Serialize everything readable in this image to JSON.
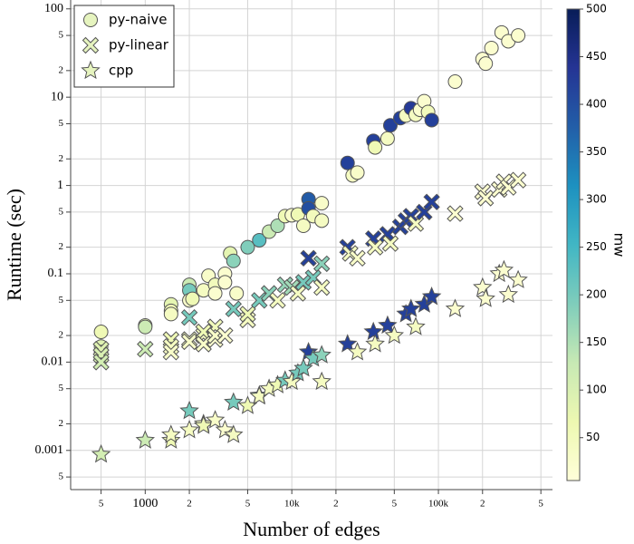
{
  "chart_data": {
    "type": "scatter",
    "x_label": "Number of edges",
    "y_label": "Runtime (sec)",
    "log_x": true,
    "log_y": true,
    "grid": true,
    "xlim": [
      310,
      600000
    ],
    "ylim": [
      0.00036,
      126
    ],
    "xticks": [
      {
        "value": 500,
        "label": "5"
      },
      1000,
      {
        "value": 2000,
        "label": "2"
      },
      {
        "value": 5000,
        "label": "5"
      },
      {
        "value": 10000,
        "label": "10k"
      },
      {
        "value": 20000,
        "label": "2"
      },
      {
        "value": 50000,
        "label": "5"
      },
      {
        "value": 100000,
        "label": "100k"
      },
      {
        "value": 200000,
        "label": "2"
      },
      {
        "value": 500000,
        "label": "5"
      }
    ],
    "yticks": [
      {
        "value": 0.0005,
        "label": "5"
      },
      0.001,
      {
        "value": 0.002,
        "label": "2"
      },
      {
        "value": 0.005,
        "label": "5"
      },
      0.01,
      {
        "value": 0.02,
        "label": "2"
      },
      {
        "value": 0.05,
        "label": "5"
      },
      0.1,
      {
        "value": 0.2,
        "label": "2"
      },
      {
        "value": 0.5,
        "label": "5"
      },
      1,
      {
        "value": 2,
        "label": "2"
      },
      {
        "value": 5,
        "label": "5"
      },
      10,
      {
        "value": 20,
        "label": "2"
      },
      {
        "value": 50,
        "label": "5"
      },
      100
    ],
    "legend_position": "upper left",
    "legend_color": "#e6f4bf",
    "colorbar": {
      "label": "mw",
      "colormap": "YlGnBu",
      "lim": [
        5,
        500
      ],
      "ticks": [
        50,
        100,
        150,
        200,
        250,
        300,
        350,
        400,
        450,
        500
      ]
    },
    "series": [
      {
        "name": "py-naive",
        "marker": "circle",
        "x": [
          500,
          500,
          500,
          500,
          1000,
          1000,
          1500,
          1500,
          1500,
          2000,
          2000,
          2000,
          2100,
          2500,
          2700,
          3000,
          3000,
          3500,
          3500,
          3800,
          4000,
          4200,
          5000,
          6000,
          7000,
          8000,
          9000,
          10000,
          11000,
          12000,
          13000,
          13000,
          14000,
          16000,
          16000,
          24000,
          26000,
          28000,
          36000,
          37000,
          45000,
          47000,
          55000,
          60000,
          65000,
          70000,
          75000,
          80000,
          85000,
          90000,
          130000,
          200000,
          210000,
          230000,
          270000,
          300000,
          350000
        ],
        "values": [
          0.022,
          0.015,
          0.013,
          0.011,
          0.026,
          0.025,
          0.045,
          0.038,
          0.035,
          0.075,
          0.065,
          0.05,
          0.052,
          0.065,
          0.095,
          0.075,
          0.06,
          0.1,
          0.08,
          0.17,
          0.14,
          0.06,
          0.2,
          0.24,
          0.3,
          0.35,
          0.45,
          0.46,
          0.47,
          0.35,
          0.7,
          0.55,
          0.45,
          0.4,
          0.63,
          1.8,
          1.3,
          1.4,
          3.2,
          2.7,
          3.4,
          4.8,
          5.8,
          6.2,
          7.5,
          6.3,
          7.2,
          9,
          6.8,
          5.5,
          15,
          27,
          24,
          36,
          54,
          43,
          50
        ],
        "mw": [
          60,
          90,
          100,
          110,
          80,
          120,
          80,
          60,
          40,
          120,
          200,
          30,
          60,
          40,
          30,
          50,
          20,
          20,
          20,
          80,
          180,
          30,
          190,
          230,
          120,
          150,
          60,
          30,
          60,
          40,
          380,
          400,
          50,
          40,
          30,
          420,
          40,
          30,
          420,
          60,
          40,
          420,
          420,
          40,
          430,
          40,
          20,
          20,
          50,
          420,
          20,
          20,
          20,
          20,
          20,
          20,
          20
        ]
      },
      {
        "name": "py-linear",
        "marker": "x",
        "x": [
          500,
          500,
          500,
          1000,
          1500,
          1500,
          1500,
          2000,
          2000,
          2000,
          2500,
          2500,
          2500,
          3000,
          3000,
          3000,
          3500,
          4000,
          5000,
          5000,
          6000,
          7000,
          8000,
          9000,
          10000,
          11000,
          12000,
          13000,
          14000,
          16000,
          16000,
          24000,
          25000,
          28000,
          36000,
          37000,
          45000,
          47000,
          55000,
          60000,
          65000,
          70000,
          80000,
          90000,
          130000,
          200000,
          210000,
          260000,
          280000,
          300000,
          350000
        ],
        "values": [
          0.014,
          0.012,
          0.01,
          0.014,
          0.018,
          0.015,
          0.013,
          0.032,
          0.018,
          0.017,
          0.02,
          0.022,
          0.016,
          0.025,
          0.018,
          0.02,
          0.02,
          0.04,
          0.03,
          0.035,
          0.05,
          0.06,
          0.05,
          0.075,
          0.07,
          0.06,
          0.08,
          0.15,
          0.09,
          0.13,
          0.07,
          0.2,
          0.17,
          0.15,
          0.25,
          0.2,
          0.28,
          0.22,
          0.34,
          0.4,
          0.45,
          0.37,
          0.5,
          0.65,
          0.48,
          0.85,
          0.72,
          0.9,
          1.1,
          0.95,
          1.15
        ],
        "mw": [
          90,
          100,
          110,
          120,
          60,
          40,
          30,
          200,
          40,
          30,
          40,
          60,
          30,
          50,
          20,
          30,
          20,
          200,
          40,
          60,
          200,
          180,
          40,
          170,
          160,
          40,
          200,
          420,
          200,
          180,
          40,
          420,
          40,
          30,
          420,
          40,
          420,
          40,
          420,
          420,
          420,
          40,
          420,
          420,
          20,
          20,
          20,
          20,
          20,
          20,
          20
        ]
      },
      {
        "name": "cpp",
        "marker": "star",
        "x": [
          500,
          1000,
          1500,
          1500,
          2000,
          2000,
          2500,
          2500,
          3000,
          3500,
          4000,
          4000,
          5000,
          6000,
          6000,
          7000,
          8000,
          9000,
          10000,
          11000,
          12000,
          13000,
          14000,
          16000,
          16000,
          24000,
          28000,
          36000,
          37000,
          45000,
          50000,
          60000,
          65000,
          70000,
          80000,
          90000,
          130000,
          200000,
          210000,
          260000,
          280000,
          300000,
          350000
        ],
        "values": [
          0.0009,
          0.0013,
          0.0013,
          0.0015,
          0.0028,
          0.0017,
          0.002,
          0.0019,
          0.0022,
          0.0017,
          0.0035,
          0.0015,
          0.0032,
          0.0042,
          0.0041,
          0.005,
          0.0055,
          0.0062,
          0.006,
          0.0075,
          0.0085,
          0.013,
          0.011,
          0.012,
          0.006,
          0.016,
          0.013,
          0.022,
          0.016,
          0.026,
          0.02,
          0.035,
          0.04,
          0.025,
          0.045,
          0.055,
          0.04,
          0.07,
          0.052,
          0.1,
          0.11,
          0.058,
          0.085
        ],
        "mw": [
          110,
          120,
          60,
          40,
          200,
          40,
          40,
          60,
          30,
          20,
          200,
          40,
          60,
          200,
          40,
          40,
          60,
          200,
          40,
          200,
          200,
          420,
          200,
          180,
          40,
          420,
          40,
          420,
          40,
          420,
          40,
          420,
          420,
          40,
          420,
          420,
          20,
          20,
          20,
          20,
          20,
          20,
          20
        ]
      }
    ]
  }
}
